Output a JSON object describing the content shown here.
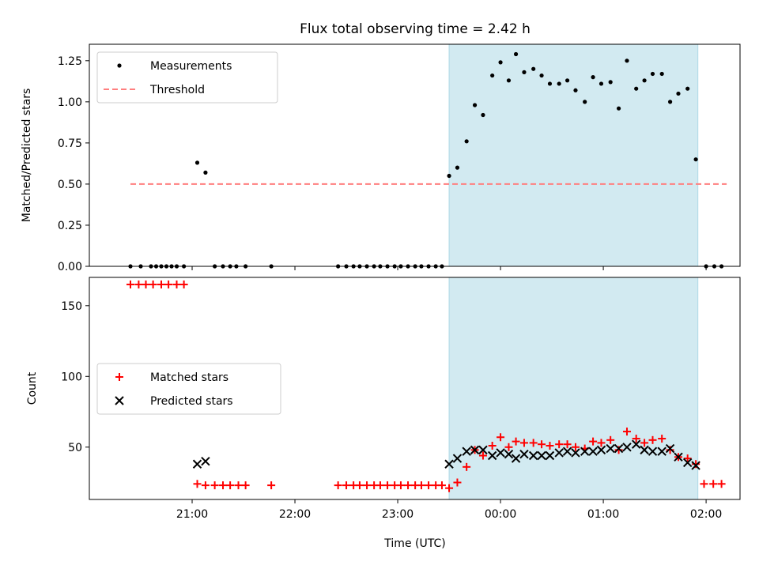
{
  "figure": {
    "title": "Flux total observing time = 2.42 h",
    "xlabel": "Time (UTC)",
    "x_ticks": [
      "21:00",
      "22:00",
      "23:00",
      "00:00",
      "01:00",
      "02:00"
    ],
    "x_tick_hours": [
      21,
      22,
      23,
      24,
      25,
      26
    ],
    "x_range_hours": [
      20.0,
      26.33
    ],
    "shade_range_hours": [
      23.5,
      25.92
    ],
    "shade_color": "#add8e6"
  },
  "chart_data": [
    {
      "type": "scatter",
      "ylabel": "Matched/Predicted stars",
      "ylim": [
        0,
        1.35
      ],
      "y_ticks": [
        0.0,
        0.25,
        0.5,
        0.75,
        1.0,
        1.25
      ],
      "y_tick_labels": [
        "0.00",
        "0.25",
        "0.50",
        "0.75",
        "1.00",
        "1.25"
      ],
      "legend": "top-left",
      "series": [
        {
          "name": "Measurements",
          "marker": "dot",
          "color": "#000000",
          "x": [
            20.4,
            20.5,
            20.6,
            20.65,
            20.7,
            20.75,
            20.8,
            20.85,
            20.92,
            21.05,
            21.13,
            21.22,
            21.3,
            21.37,
            21.43,
            21.52,
            21.77,
            22.42,
            22.5,
            22.57,
            22.63,
            22.7,
            22.77,
            22.83,
            22.9,
            22.97,
            23.03,
            23.1,
            23.17,
            23.23,
            23.3,
            23.37,
            23.43,
            23.5,
            23.58,
            23.67,
            23.75,
            23.83,
            23.92,
            24.0,
            24.08,
            24.15,
            24.23,
            24.32,
            24.4,
            24.48,
            24.57,
            24.65,
            24.73,
            24.82,
            24.9,
            24.98,
            25.07,
            25.15,
            25.23,
            25.32,
            25.4,
            25.48,
            25.57,
            25.65,
            25.73,
            25.82,
            25.9,
            26.0,
            26.08,
            26.15
          ],
          "y": [
            0,
            0,
            0,
            0,
            0,
            0,
            0,
            0,
            0,
            0.63,
            0.57,
            0,
            0,
            0,
            0,
            0,
            0,
            0,
            0,
            0,
            0,
            0,
            0,
            0,
            0,
            0,
            0,
            0,
            0,
            0,
            0,
            0,
            0,
            0.55,
            0.6,
            0.76,
            0.98,
            0.92,
            1.16,
            1.24,
            1.13,
            1.29,
            1.18,
            1.2,
            1.16,
            1.11,
            1.11,
            1.13,
            1.07,
            1.0,
            1.15,
            1.11,
            1.12,
            0.96,
            1.25,
            1.08,
            1.13,
            1.17,
            1.17,
            1.0,
            1.05,
            1.08,
            0.65,
            0,
            0,
            0
          ]
        },
        {
          "name": "Threshold",
          "marker": "dashed-line",
          "color": "#ff7f7f",
          "x": [
            20.4,
            26.2
          ],
          "y": [
            0.5,
            0.5
          ]
        }
      ]
    },
    {
      "type": "scatter",
      "ylabel": "Count",
      "ylim": [
        13,
        170
      ],
      "y_ticks": [
        50,
        100,
        150
      ],
      "y_tick_labels": [
        "50",
        "100",
        "150"
      ],
      "legend": "center-left",
      "series": [
        {
          "name": "Matched stars",
          "marker": "plus",
          "color": "#ff0000",
          "x": [
            20.4,
            20.48,
            20.55,
            20.62,
            20.7,
            20.77,
            20.85,
            20.92,
            21.05,
            21.13,
            21.22,
            21.3,
            21.37,
            21.45,
            21.52,
            21.77,
            22.42,
            22.5,
            22.57,
            22.63,
            22.7,
            22.77,
            22.83,
            22.9,
            22.97,
            23.03,
            23.1,
            23.17,
            23.23,
            23.3,
            23.37,
            23.43,
            23.5,
            23.58,
            23.67,
            23.75,
            23.83,
            23.92,
            24.0,
            24.08,
            24.15,
            24.23,
            24.32,
            24.4,
            24.48,
            24.57,
            24.65,
            24.73,
            24.82,
            24.9,
            24.98,
            25.07,
            25.15,
            25.23,
            25.32,
            25.4,
            25.48,
            25.57,
            25.65,
            25.73,
            25.82,
            25.9,
            25.98,
            26.07,
            26.15
          ],
          "y": [
            165,
            165,
            165,
            165,
            165,
            165,
            165,
            165,
            24,
            23,
            23,
            23,
            23,
            23,
            23,
            23,
            23,
            23,
            23,
            23,
            23,
            23,
            23,
            23,
            23,
            23,
            23,
            23,
            23,
            23,
            23,
            23,
            21,
            25,
            36,
            48,
            44,
            51,
            57,
            50,
            54,
            53,
            53,
            52,
            51,
            52,
            52,
            50,
            49,
            54,
            53,
            55,
            48,
            61,
            56,
            53,
            55,
            56,
            48,
            43,
            42,
            38,
            24,
            24,
            24
          ]
        },
        {
          "name": "Predicted stars",
          "marker": "x",
          "color": "#000000",
          "x": [
            21.05,
            21.13,
            23.5,
            23.58,
            23.67,
            23.75,
            23.83,
            23.92,
            24.0,
            24.08,
            24.15,
            24.23,
            24.32,
            24.4,
            24.48,
            24.57,
            24.65,
            24.73,
            24.82,
            24.9,
            24.98,
            25.07,
            25.15,
            25.23,
            25.32,
            25.4,
            25.48,
            25.57,
            25.65,
            25.73,
            25.82,
            25.9
          ],
          "y": [
            38,
            40,
            38,
            42,
            47,
            48,
            48,
            44,
            46,
            45,
            42,
            45,
            44,
            44,
            44,
            46,
            47,
            46,
            47,
            47,
            48,
            49,
            49,
            50,
            52,
            48,
            47,
            47,
            49,
            43,
            39,
            37
          ]
        }
      ]
    }
  ]
}
